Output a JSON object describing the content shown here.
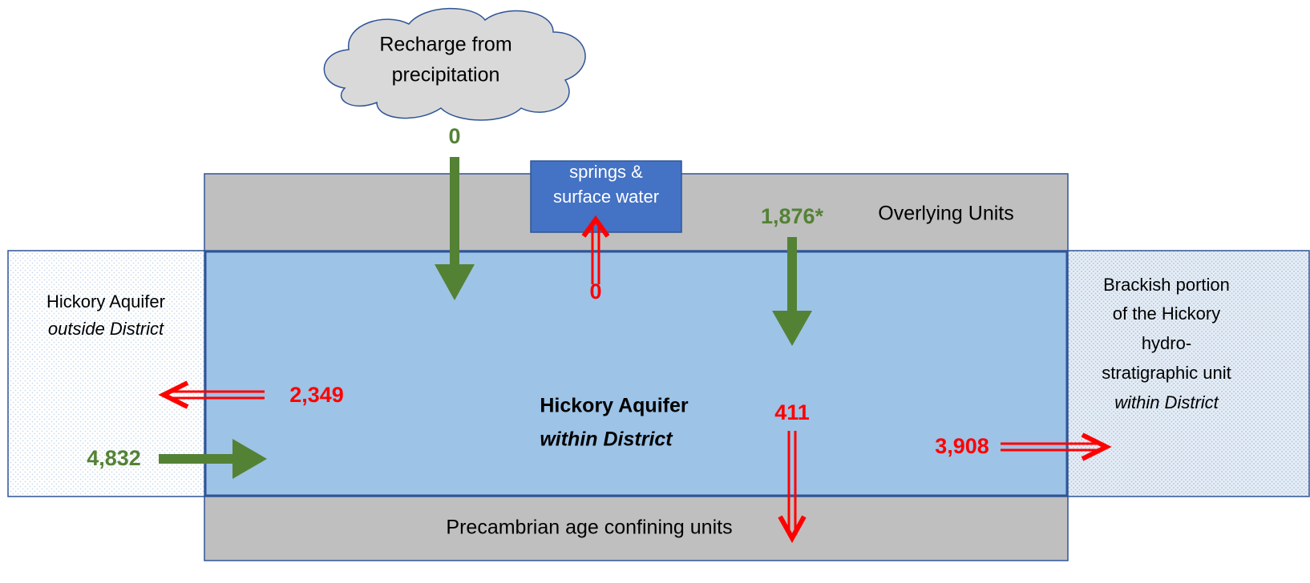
{
  "cloud": {
    "lines": [
      "Recharge from",
      "precipitation"
    ]
  },
  "springs": {
    "lines": [
      "springs &",
      "surface water"
    ]
  },
  "layers": {
    "overlying": "Overlying Units",
    "aquifer": [
      "Hickory Aquifer",
      "within District"
    ],
    "confining": "Precambrian age confining units"
  },
  "outside": [
    "Hickory Aquifer",
    "outside District"
  ],
  "brackish": [
    "Brackish portion",
    "of the Hickory",
    "hydro-",
    "stratigraphic unit",
    "within District"
  ],
  "flows": {
    "recharge": "0",
    "to_springs": "0",
    "from_overlying": "1,876*",
    "to_outside": "2,349",
    "from_outside": "4,832",
    "to_confining": "411",
    "to_brackish": "3,908"
  }
}
